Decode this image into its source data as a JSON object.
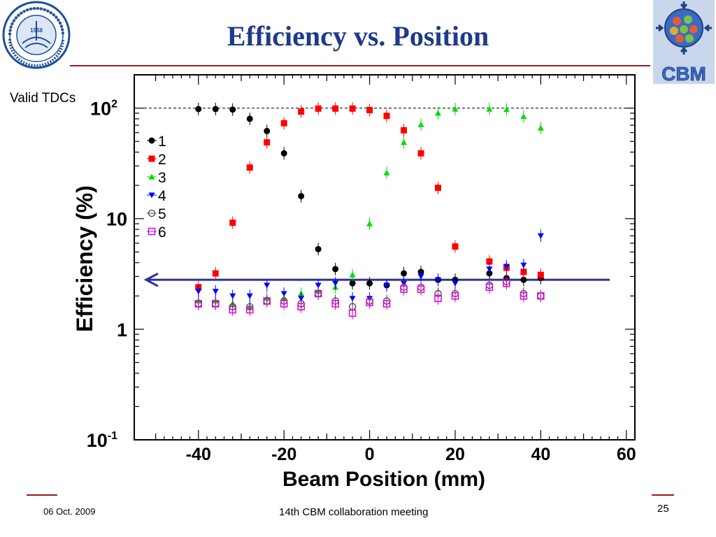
{
  "slide": {
    "title": "Efficiency vs. Position",
    "side_label": "Valid TDCs",
    "footer_date": "06 Oct. 2009",
    "footer_meeting": "14th CBM collaboration meeting",
    "page_number": "25",
    "logo_right_text": "CBM",
    "logo_left_year": "1958",
    "colors": {
      "title": "#1f3a8a",
      "rule": "#9b1c1c",
      "arrow": "#2e3192",
      "cbm": "#3a6bc4"
    }
  },
  "chart_data": {
    "type": "scatter",
    "xlabel": "Beam Position (mm)",
    "ylabel": "Efficiency (%)",
    "xlim": [
      -55,
      62
    ],
    "ylim": [
      0.1,
      200
    ],
    "yscale": "log",
    "x_ticks": [
      -40,
      -20,
      0,
      20,
      40,
      60
    ],
    "y_ticks": [
      {
        "value": 0.1,
        "base": "10",
        "exp": "-1"
      },
      {
        "value": 1,
        "base": "1",
        "exp": ""
      },
      {
        "value": 10,
        "base": "10",
        "exp": ""
      },
      {
        "value": 100,
        "base": "10",
        "exp": "2"
      }
    ],
    "reference_line": 100,
    "arrow_level": 2.8,
    "series": [
      {
        "name": "1",
        "color": "#000000",
        "marker": "circle-filled",
        "x": [
          -40,
          -36,
          -32,
          -28,
          -24,
          -20,
          -16,
          -12,
          -8,
          -4,
          0,
          4,
          8,
          12,
          16,
          20,
          28,
          32,
          36,
          40
        ],
        "y": [
          98,
          98,
          97,
          80,
          62,
          39,
          16,
          5.3,
          3.5,
          2.6,
          2.6,
          2.5,
          3.2,
          3.3,
          2.8,
          2.8,
          3.2,
          2.9,
          2.8,
          2.9
        ]
      },
      {
        "name": "2",
        "color": "#ff0000",
        "marker": "square-filled",
        "x": [
          -40,
          -36,
          -32,
          -28,
          -24,
          -20,
          -16,
          -12,
          -8,
          -4,
          0,
          4,
          8,
          12,
          16,
          20,
          28,
          32,
          36,
          40
        ],
        "y": [
          2.4,
          3.2,
          9.2,
          29,
          49,
          73,
          93,
          99,
          99,
          99,
          96,
          85,
          63,
          39,
          19,
          5.6,
          4.1,
          3.6,
          3.3,
          3.1
        ]
      },
      {
        "name": "3",
        "color": "#00dd00",
        "marker": "triangle-up",
        "x": [
          -40,
          -36,
          -32,
          -28,
          -24,
          -20,
          -16,
          -12,
          -8,
          -4,
          0,
          4,
          8,
          12,
          16,
          20,
          28,
          32,
          36,
          40
        ],
        "y": [
          1.8,
          1.8,
          1.7,
          1.6,
          1.9,
          1.9,
          2.1,
          2.2,
          2.4,
          3.1,
          9,
          26,
          49,
          71,
          90,
          98,
          98,
          97,
          84,
          66
        ]
      },
      {
        "name": "4",
        "color": "#0000ff",
        "marker": "triangle-down",
        "x": [
          -40,
          -36,
          -32,
          -28,
          -24,
          -20,
          -16,
          -12,
          -8,
          -4,
          0,
          4,
          8,
          12,
          16,
          20,
          28,
          32,
          36,
          40
        ],
        "y": [
          2.2,
          2.2,
          2.0,
          2.0,
          2.5,
          2.1,
          1.9,
          2.5,
          2.6,
          1.9,
          1.9,
          2.5,
          2.6,
          3.0,
          2.8,
          2.6,
          3.5,
          3.7,
          3.8,
          7.0
        ]
      },
      {
        "name": "5",
        "color": "#444444",
        "marker": "circle-open",
        "x": [
          -40,
          -36,
          -32,
          -28,
          -24,
          -20,
          -16,
          -12,
          -8,
          -4,
          0,
          4,
          8,
          12,
          16,
          20,
          28,
          32,
          36,
          40
        ],
        "y": [
          1.7,
          1.7,
          1.6,
          1.6,
          1.8,
          1.8,
          1.7,
          2.1,
          1.8,
          1.6,
          1.8,
          1.8,
          2.4,
          2.4,
          2.1,
          2.1,
          2.5,
          2.7,
          2.1,
          2.0
        ]
      },
      {
        "name": "6",
        "color": "#dd00dd",
        "marker": "square-open",
        "x": [
          -40,
          -36,
          -32,
          -28,
          -24,
          -20,
          -16,
          -12,
          -8,
          -4,
          0,
          4,
          8,
          12,
          16,
          20,
          28,
          32,
          36,
          40
        ],
        "y": [
          1.7,
          1.7,
          1.5,
          1.5,
          1.8,
          1.7,
          1.6,
          2.1,
          1.7,
          1.4,
          1.75,
          1.7,
          2.3,
          2.3,
          1.9,
          2.0,
          2.4,
          2.6,
          2.0,
          2.0
        ]
      }
    ]
  }
}
